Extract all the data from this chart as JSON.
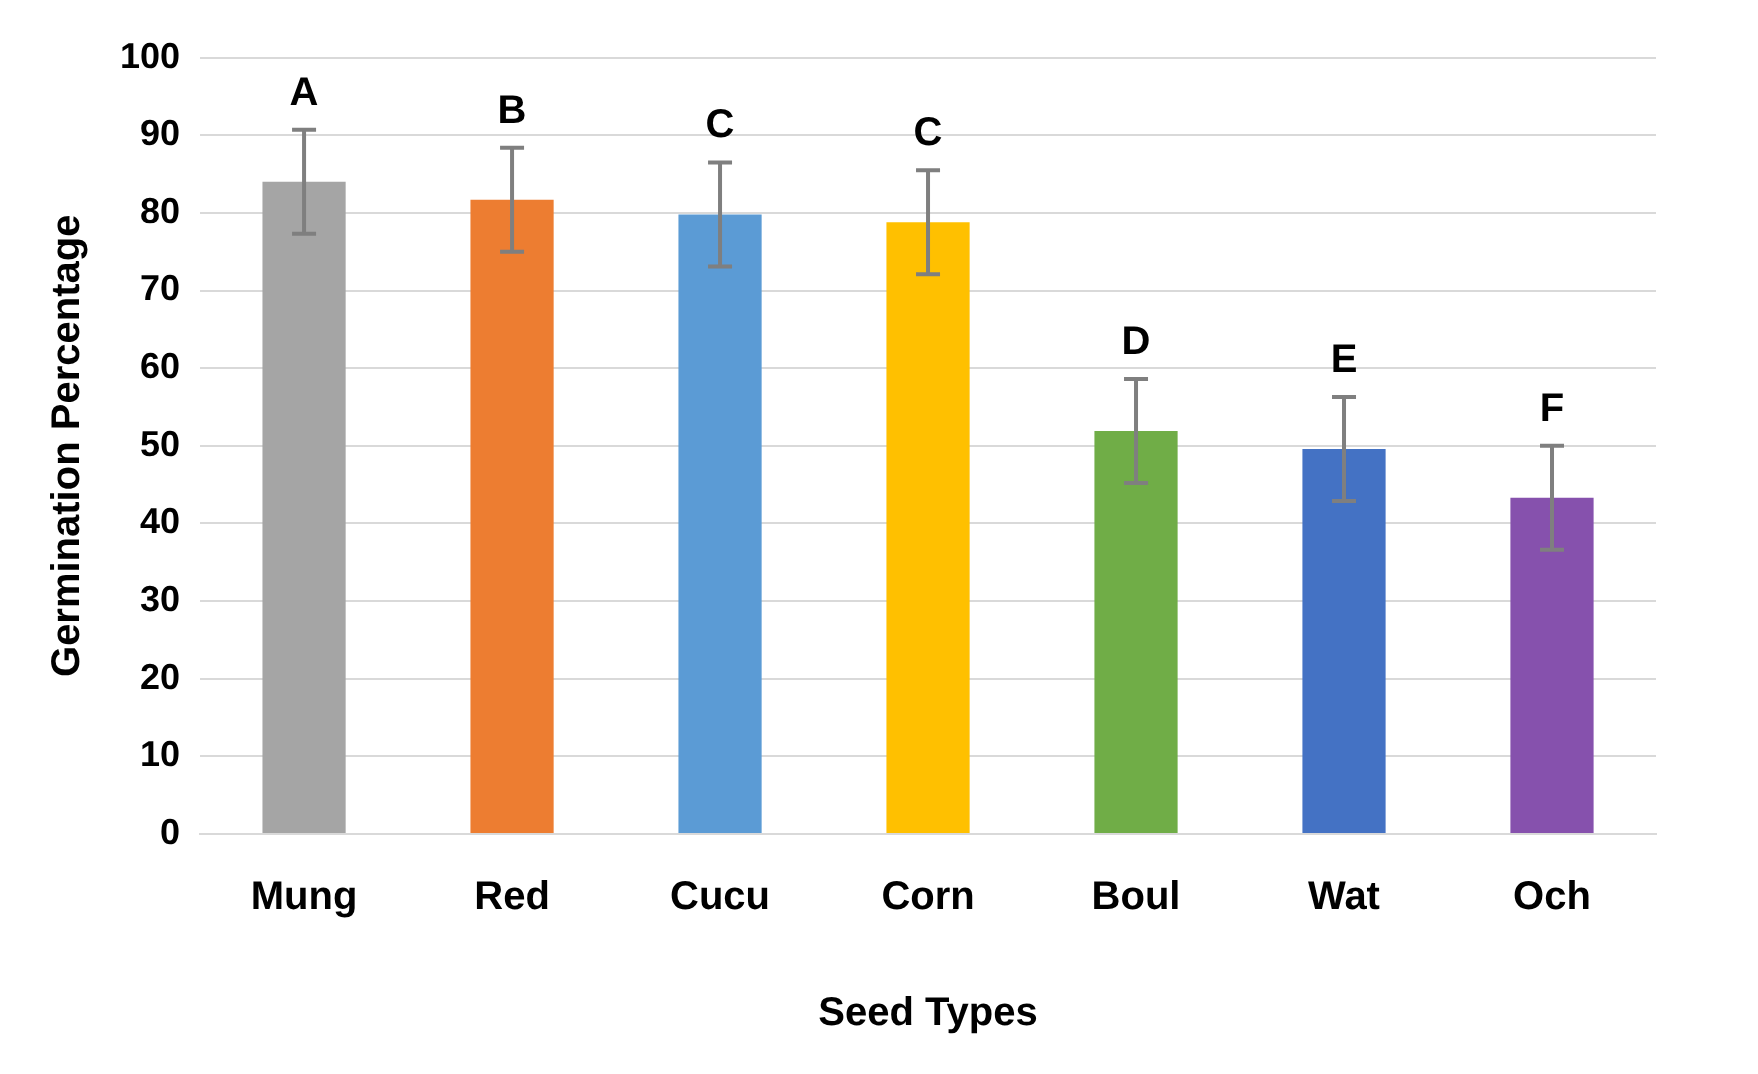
{
  "chart_data": {
    "type": "bar",
    "xlabel": "Seed Types",
    "ylabel": "Germination Percentage",
    "categories": [
      "Mung",
      "Red",
      "Cucu",
      "Corn",
      "Boul",
      "Wat",
      "Och"
    ],
    "values": [
      84.0,
      81.7,
      79.8,
      78.8,
      51.9,
      49.6,
      43.3
    ],
    "colors": [
      "#a5a5a5",
      "#ed7d31",
      "#5b9bd5",
      "#ffc000",
      "#70ad47",
      "#4472c4",
      "#8651ad"
    ],
    "errors": [
      6.7,
      6.7,
      6.7,
      6.7,
      6.7,
      6.7,
      6.7
    ],
    "ylim": [
      0,
      100
    ],
    "yticks": [
      0,
      10,
      20,
      30,
      40,
      50,
      60,
      70,
      80,
      90,
      100
    ],
    "grid": "y",
    "legend": false,
    "annotations": [
      {
        "text": "A",
        "x": "Mung",
        "y": 84.0
      },
      {
        "text": "B",
        "x": "Red",
        "y": 81.7
      },
      {
        "text": "C",
        "x": "Cucu",
        "y": 79.8
      },
      {
        "text": "C",
        "x": "Corn",
        "y": 78.8
      },
      {
        "text": "D",
        "x": "Boul",
        "y": 51.9
      },
      {
        "text": "E",
        "x": "Wat",
        "y": 49.6
      },
      {
        "text": "F",
        "x": "Och",
        "y": 43.3
      }
    ]
  }
}
